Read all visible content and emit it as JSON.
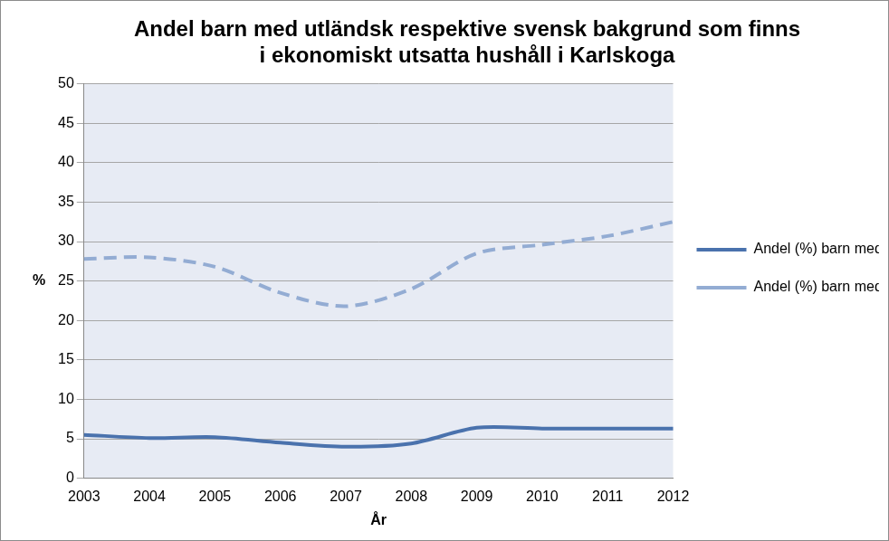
{
  "chart_data": {
    "type": "line",
    "title": [
      "Andel barn med utländsk respektive svensk bakgrund som finns",
      "i ekonomiskt utsatta hushåll i Karlskoga"
    ],
    "x_label": "År",
    "y_label": "%",
    "categories": [
      "2003",
      "2004",
      "2005",
      "2006",
      "2007",
      "2008",
      "2009",
      "2010",
      "2011",
      "2012"
    ],
    "series": [
      {
        "name": "Andel (%) barn med svensk bakgrund",
        "color": "#4a72ad",
        "line_style": "solid",
        "values": [
          5.5,
          5.1,
          5.2,
          4.5,
          4.0,
          4.4,
          6.4,
          6.3,
          6.3,
          6.3
        ]
      },
      {
        "name": "Andel (%) barn med utländsk bakgrund",
        "color": "#93acd3",
        "line_style": "dashed",
        "values": [
          27.8,
          28.0,
          26.8,
          23.5,
          21.8,
          24.0,
          28.5,
          29.6,
          30.7,
          32.5
        ]
      }
    ],
    "ylim": [
      0,
      50
    ],
    "yticks": [
      0,
      5,
      10,
      15,
      20,
      25,
      30,
      35,
      40,
      45,
      50
    ],
    "grid": true,
    "legend": "right",
    "marker": "none"
  }
}
